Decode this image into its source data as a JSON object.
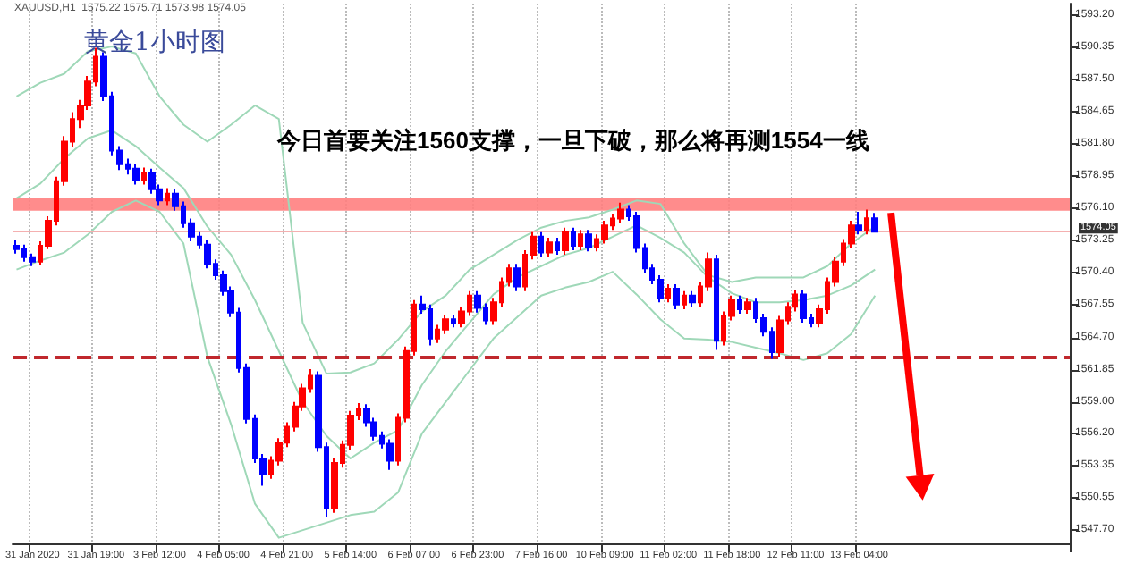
{
  "chart_data": {
    "type": "candlestick",
    "title": "黄金1小时图",
    "annotations": [
      "XAUUSD,H1  1575.22 1575.71 1573.98 1574.05",
      "今日首要关注1560支撑，一旦下破，那么将再测1554一线"
    ],
    "categories": [
      null,
      null,
      "31 Jan 2020",
      null,
      null,
      null,
      null,
      null,
      null,
      null,
      "31 Jan 19:00",
      null,
      null,
      null,
      null,
      null,
      null,
      null,
      "3 Feb 12:00",
      null,
      null,
      null,
      null,
      null,
      null,
      null,
      "4 Feb 05:00",
      null,
      null,
      null,
      null,
      null,
      null,
      null,
      "4 Feb 21:00",
      null,
      null,
      null,
      null,
      null,
      null,
      null,
      "5 Feb 14:00",
      null,
      null,
      null,
      null,
      null,
      null,
      null,
      "6 Feb 07:00",
      null,
      null,
      null,
      null,
      null,
      null,
      null,
      "6 Feb 23:00",
      null,
      null,
      null,
      null,
      null,
      null,
      null,
      "7 Feb 16:00",
      null,
      null,
      null,
      null,
      null,
      null,
      null,
      "10 Feb 09:00",
      null,
      null,
      null,
      null,
      null,
      null,
      null,
      "11 Feb 02:00",
      null,
      null,
      null,
      null,
      null,
      null,
      null,
      "11 Feb 18:00",
      null,
      null,
      null,
      null,
      null,
      null,
      null,
      "12 Feb 11:00",
      null,
      null,
      null,
      null,
      null,
      null,
      null,
      "13 Feb 04:00",
      null,
      null,
      null,
      null,
      null,
      null,
      null,
      null,
      null,
      null,
      null,
      null,
      null,
      null,
      null,
      null,
      null,
      null,
      null,
      null,
      null,
      null,
      null,
      null,
      null,
      null
    ],
    "colors": [
      "#0000ff",
      "#0000ff",
      "#0000ff",
      "#ff0000",
      "#ff0000",
      "#ff0000",
      "#ff0000",
      "#ff0000",
      "#ff0000",
      "#ff0000",
      "#ff0000",
      "#0000ff",
      "#0000ff",
      "#0000ff",
      "#0000ff",
      "#0000ff",
      "#ff0000",
      "#0000ff",
      "#0000ff",
      "#ff0000",
      "#0000ff",
      "#0000ff",
      "#0000ff",
      "#0000ff",
      "#0000ff",
      "#0000ff",
      "#0000ff",
      "#0000ff",
      "#0000ff",
      "#0000ff",
      "#0000ff",
      "#0000ff",
      "#ff0000",
      "#ff0000",
      "#ff0000",
      "#ff0000",
      "#ff0000",
      "#ff0000",
      "#0000ff",
      "#0000ff",
      "#ff0000",
      "#ff0000",
      "#ff0000",
      "#ff0000",
      "#0000ff",
      "#0000ff",
      "#0000ff",
      "#0000ff",
      "#ff0000",
      "#ff0000",
      "#ff0000",
      "#0000ff",
      "#0000ff",
      "#ff0000",
      "#ff0000",
      "#0000ff",
      "#ff0000",
      "#ff0000",
      "#0000ff",
      "#0000ff",
      "#ff0000",
      "#ff0000",
      "#ff0000",
      "#0000ff",
      "#ff0000",
      "#ff0000",
      "#0000ff",
      "#ff0000",
      "#0000ff",
      "#ff0000",
      "#0000ff",
      "#ff0000",
      "#0000ff",
      "#ff0000",
      "#ff0000",
      "#ff0000",
      "#ff0000",
      "#0000ff",
      "#0000ff",
      "#0000ff",
      "#0000ff",
      "#0000ff",
      "#ff0000",
      "#0000ff",
      "#ff0000",
      "#0000ff",
      "#ff0000",
      "#ff0000",
      "#0000ff",
      "#ff0000",
      "#ff0000",
      "#0000ff",
      "#ff0000",
      "#0000ff",
      "#0000ff",
      "#0000ff",
      "#ff0000",
      "#ff0000",
      "#ff0000",
      "#0000ff",
      "#0000ff",
      "#ff0000",
      "#ff0000",
      "#ff0000",
      "#ff0000",
      "#ff0000",
      "#0000ff",
      "#ff0000",
      "#0000ff",
      null,
      null,
      null,
      null,
      null,
      null,
      null,
      null,
      null,
      null,
      null,
      null,
      null,
      null,
      null,
      null,
      null,
      null,
      null,
      null,
      null,
      null,
      null,
      null
    ],
    "ohlc": [
      [
        1572.8,
        1573.3,
        1572.1,
        1572.5
      ],
      [
        1572.5,
        1572.9,
        1571.4,
        1571.8
      ],
      [
        1571.8,
        1572.1,
        1571.0,
        1571.4
      ],
      [
        1571.4,
        1573.2,
        1571.1,
        1572.8
      ],
      [
        1572.8,
        1575.4,
        1572.5,
        1575.0
      ],
      [
        1575.0,
        1578.9,
        1574.6,
        1578.5
      ],
      [
        1578.5,
        1582.5,
        1578.1,
        1582.0
      ],
      [
        1582.0,
        1584.6,
        1581.5,
        1584.0
      ],
      [
        1584.0,
        1585.7,
        1583.2,
        1585.2
      ],
      [
        1585.2,
        1587.8,
        1584.8,
        1587.3
      ],
      [
        1587.3,
        1590.3,
        1586.9,
        1589.5
      ],
      [
        1589.5,
        1589.9,
        1585.6,
        1586.0
      ],
      [
        1586.0,
        1586.4,
        1580.8,
        1581.2
      ],
      [
        1581.2,
        1581.6,
        1579.5,
        1580.0
      ],
      [
        1580.0,
        1580.5,
        1579.1,
        1579.6
      ],
      [
        1579.6,
        1580.0,
        1578.2,
        1578.6
      ],
      [
        1578.6,
        1579.7,
        1578.2,
        1579.2
      ],
      [
        1579.2,
        1579.6,
        1577.4,
        1577.8
      ],
      [
        1577.8,
        1578.2,
        1576.4,
        1576.8
      ],
      [
        1576.8,
        1577.9,
        1576.4,
        1577.4
      ],
      [
        1577.4,
        1577.8,
        1575.9,
        1576.3
      ],
      [
        1576.3,
        1576.7,
        1574.4,
        1574.8
      ],
      [
        1574.8,
        1575.2,
        1573.2,
        1573.6
      ],
      [
        1573.6,
        1574.0,
        1572.5,
        1572.9
      ],
      [
        1572.9,
        1573.3,
        1570.8,
        1571.2
      ],
      [
        1571.2,
        1571.6,
        1569.8,
        1570.2
      ],
      [
        1570.2,
        1570.6,
        1568.4,
        1568.8
      ],
      [
        1568.8,
        1569.2,
        1566.5,
        1566.9
      ],
      [
        1566.9,
        1567.3,
        1561.6,
        1562.0
      ],
      [
        1562.0,
        1562.4,
        1557.1,
        1557.5
      ],
      [
        1557.5,
        1557.9,
        1553.6,
        1554.0
      ],
      [
        1554.0,
        1554.4,
        1551.6,
        1552.6
      ],
      [
        1552.6,
        1554.2,
        1552.2,
        1553.8
      ],
      [
        1553.8,
        1555.8,
        1553.4,
        1555.4
      ],
      [
        1555.4,
        1557.2,
        1555.0,
        1556.8
      ],
      [
        1556.8,
        1559.0,
        1556.4,
        1558.6
      ],
      [
        1558.6,
        1560.6,
        1558.2,
        1560.2
      ],
      [
        1560.2,
        1561.9,
        1559.8,
        1561.3
      ],
      [
        1561.3,
        1561.7,
        1554.6,
        1555.0
      ],
      [
        1555.0,
        1555.4,
        1548.8,
        1549.6
      ],
      [
        1549.6,
        1554.0,
        1549.2,
        1553.6
      ],
      [
        1553.6,
        1555.6,
        1553.2,
        1555.2
      ],
      [
        1555.2,
        1558.2,
        1554.8,
        1557.8
      ],
      [
        1557.8,
        1558.9,
        1557.4,
        1558.4
      ],
      [
        1558.4,
        1558.8,
        1556.8,
        1557.2
      ],
      [
        1557.2,
        1557.6,
        1555.6,
        1556.0
      ],
      [
        1556.0,
        1556.4,
        1554.9,
        1555.3
      ],
      [
        1555.3,
        1555.7,
        1553.0,
        1553.8
      ],
      [
        1553.8,
        1558.0,
        1553.4,
        1557.6
      ],
      [
        1557.6,
        1563.9,
        1557.2,
        1563.5
      ],
      [
        1563.5,
        1568.0,
        1563.1,
        1567.6
      ],
      [
        1567.6,
        1568.4,
        1566.8,
        1567.2
      ],
      [
        1567.2,
        1567.6,
        1564.0,
        1564.6
      ],
      [
        1564.6,
        1565.8,
        1564.2,
        1565.4
      ],
      [
        1565.4,
        1566.7,
        1565.0,
        1566.3
      ],
      [
        1566.3,
        1566.7,
        1565.6,
        1566.0
      ],
      [
        1566.0,
        1567.4,
        1565.6,
        1567.0
      ],
      [
        1567.0,
        1568.8,
        1566.6,
        1568.4
      ],
      [
        1568.4,
        1568.8,
        1566.9,
        1567.3
      ],
      [
        1567.3,
        1567.7,
        1565.8,
        1566.2
      ],
      [
        1566.2,
        1568.2,
        1565.8,
        1567.8
      ],
      [
        1567.8,
        1570.0,
        1567.4,
        1569.6
      ],
      [
        1569.6,
        1571.2,
        1569.2,
        1570.8
      ],
      [
        1570.8,
        1571.2,
        1568.8,
        1569.2
      ],
      [
        1569.2,
        1572.4,
        1568.8,
        1572.0
      ],
      [
        1572.0,
        1574.0,
        1571.6,
        1573.6
      ],
      [
        1573.6,
        1574.0,
        1571.8,
        1572.2
      ],
      [
        1572.2,
        1573.5,
        1571.8,
        1573.1
      ],
      [
        1573.1,
        1573.5,
        1572.0,
        1572.4
      ],
      [
        1572.4,
        1574.4,
        1572.0,
        1574.0
      ],
      [
        1574.0,
        1574.4,
        1572.4,
        1572.8
      ],
      [
        1572.8,
        1574.2,
        1572.4,
        1573.8
      ],
      [
        1573.8,
        1574.2,
        1572.3,
        1572.7
      ],
      [
        1572.7,
        1573.8,
        1572.3,
        1573.4
      ],
      [
        1573.4,
        1575.0,
        1573.0,
        1574.6
      ],
      [
        1574.6,
        1575.6,
        1574.2,
        1575.2
      ],
      [
        1575.2,
        1576.6,
        1574.8,
        1576.0
      ],
      [
        1576.0,
        1576.4,
        1575.0,
        1575.4
      ],
      [
        1575.4,
        1575.8,
        1572.2,
        1572.6
      ],
      [
        1572.6,
        1573.0,
        1570.4,
        1570.8
      ],
      [
        1570.8,
        1571.2,
        1569.4,
        1569.8
      ],
      [
        1569.8,
        1570.2,
        1567.8,
        1568.2
      ],
      [
        1568.2,
        1569.4,
        1567.8,
        1569.0
      ],
      [
        1569.0,
        1569.4,
        1567.2,
        1567.6
      ],
      [
        1567.6,
        1568.8,
        1567.2,
        1568.4
      ],
      [
        1568.4,
        1568.8,
        1567.4,
        1567.8
      ],
      [
        1567.8,
        1569.6,
        1567.4,
        1569.2
      ],
      [
        1569.2,
        1572.2,
        1568.8,
        1571.6
      ],
      [
        1571.6,
        1572.0,
        1563.6,
        1564.4
      ],
      [
        1564.4,
        1567.0,
        1564.0,
        1566.6
      ],
      [
        1566.6,
        1568.4,
        1566.2,
        1568.0
      ],
      [
        1568.0,
        1568.4,
        1566.8,
        1567.2
      ],
      [
        1567.2,
        1568.2,
        1566.8,
        1567.8
      ],
      [
        1567.8,
        1568.2,
        1566.0,
        1566.4
      ],
      [
        1566.4,
        1566.8,
        1564.8,
        1565.2
      ],
      [
        1565.2,
        1565.6,
        1562.8,
        1563.4
      ],
      [
        1563.4,
        1566.6,
        1563.0,
        1566.2
      ],
      [
        1566.2,
        1567.8,
        1565.8,
        1567.4
      ],
      [
        1567.4,
        1568.9,
        1567.0,
        1568.5
      ],
      [
        1568.5,
        1568.9,
        1566.0,
        1566.4
      ],
      [
        1566.4,
        1566.8,
        1565.6,
        1566.0
      ],
      [
        1566.0,
        1567.6,
        1565.6,
        1567.2
      ],
      [
        1567.2,
        1570.0,
        1566.8,
        1569.6
      ],
      [
        1569.6,
        1571.8,
        1569.2,
        1571.4
      ],
      [
        1571.4,
        1573.4,
        1571.0,
        1573.0
      ],
      [
        1573.0,
        1575.0,
        1572.6,
        1574.6
      ],
      [
        1574.6,
        1575.8,
        1573.8,
        1574.2
      ],
      [
        1574.2,
        1576.0,
        1573.8,
        1575.22
      ],
      [
        1575.22,
        1575.71,
        1573.98,
        1574.05
      ],
      null,
      null,
      null,
      null,
      null,
      null,
      null,
      null,
      null,
      null,
      null,
      null,
      null,
      null,
      null,
      null,
      null,
      null,
      null,
      null,
      null,
      null,
      null,
      null
    ],
    "series": [
      {
        "type": "line",
        "color": "#9fd8b8",
        "values": [
          1586,
          null,
          null,
          1587.2,
          null,
          null,
          1588,
          null,
          null,
          1590,
          null,
          null,
          1590.4,
          null,
          null,
          1589.8,
          null,
          null,
          1586,
          null,
          null,
          1583.5,
          null,
          null,
          1582,
          null,
          null,
          1583.5,
          null,
          null,
          1585.2,
          null,
          null,
          1584,
          null,
          null,
          1566,
          null,
          null,
          1561.5,
          null,
          null,
          1561.6,
          null,
          null,
          1562.4,
          null,
          null,
          1564.5,
          null,
          null,
          1567,
          null,
          null,
          1568.4,
          null,
          null,
          1570.7,
          null,
          null,
          1572,
          null,
          null,
          1573.3,
          null,
          null,
          1574.4,
          null,
          null,
          1575,
          null,
          null,
          1575.3,
          null,
          null,
          1576,
          null,
          null,
          1576.8,
          null,
          null,
          1576.5,
          null,
          null,
          1573,
          null,
          null,
          1570.2,
          null,
          null,
          1569.6,
          null,
          null,
          1570,
          null,
          null,
          1570,
          null,
          null,
          1570,
          null,
          null,
          1571,
          null,
          null,
          1573,
          null,
          null,
          1574.5,
          null,
          null,
          null,
          null,
          null,
          null,
          null,
          null,
          null,
          null,
          null,
          null,
          null,
          null,
          null,
          null,
          null,
          null,
          null,
          null,
          null,
          null,
          null,
          null
        ]
      },
      {
        "type": "line",
        "color": "#9fd8b8",
        "values": [
          1577,
          null,
          null,
          1578.3,
          null,
          null,
          1580.5,
          null,
          null,
          1582.3,
          null,
          null,
          1583,
          null,
          null,
          1581.6,
          null,
          null,
          1579.7,
          null,
          null,
          1577.9,
          null,
          null,
          1574.5,
          null,
          null,
          1572,
          null,
          null,
          1568,
          null,
          null,
          1563.5,
          null,
          null,
          1559,
          null,
          null,
          1556,
          null,
          null,
          1554,
          null,
          null,
          1555.4,
          null,
          null,
          1556.5,
          null,
          null,
          1560.5,
          null,
          null,
          1563.5,
          null,
          null,
          1566,
          null,
          null,
          1568.5,
          null,
          null,
          1570,
          null,
          null,
          1571,
          null,
          null,
          1572,
          null,
          null,
          1572.6,
          null,
          null,
          1573.6,
          null,
          null,
          1574.6,
          null,
          null,
          1573.5,
          null,
          null,
          1572.2,
          null,
          null,
          1570,
          null,
          null,
          1568.6,
          null,
          null,
          1567.8,
          null,
          null,
          1567.8,
          null,
          null,
          1568,
          null,
          null,
          1568.4,
          null,
          null,
          1569.3,
          null,
          null,
          1570.7,
          null,
          null,
          null,
          null,
          null,
          null,
          null,
          null,
          null,
          null,
          null,
          null,
          null,
          null,
          null,
          null,
          null,
          null,
          null,
          null,
          null,
          null,
          null,
          null
        ]
      },
      {
        "type": "line",
        "color": "#9fd8b8",
        "values": [
          1570.7,
          null,
          null,
          1571.5,
          null,
          null,
          1572.2,
          null,
          null,
          1573.8,
          null,
          null,
          1575.8,
          null,
          null,
          1576.8,
          null,
          null,
          1575.8,
          null,
          null,
          1573,
          null,
          null,
          1563,
          null,
          null,
          1557,
          null,
          null,
          1550,
          null,
          null,
          1547,
          null,
          null,
          null,
          null,
          null,
          null,
          null,
          null,
          1549,
          null,
          null,
          1549.3,
          null,
          null,
          1551,
          null,
          null,
          1556.2,
          null,
          null,
          1559,
          null,
          null,
          1561.8,
          null,
          null,
          1564.6,
          null,
          null,
          1566.5,
          null,
          null,
          1568.4,
          null,
          null,
          1569.1,
          null,
          null,
          1569.6,
          null,
          null,
          1570.5,
          null,
          null,
          1568.5,
          null,
          null,
          1566.3,
          null,
          null,
          1564.6,
          null,
          null,
          1564.5,
          null,
          null,
          1564.3,
          null,
          null,
          1563.8,
          null,
          null,
          1563.3,
          null,
          null,
          1562.7,
          null,
          null,
          1563.3,
          null,
          null,
          1565,
          null,
          null,
          1568.4,
          null,
          null,
          null,
          null,
          null,
          null,
          null,
          null,
          null,
          null,
          null,
          null,
          null,
          null,
          null,
          null,
          null,
          null,
          null,
          null,
          null,
          null,
          null,
          null
        ]
      }
    ],
    "ylim": [
      1546.5,
      1594.2
    ],
    "yticks": [
      {
        "value": 1547.7,
        "label": "1547.70"
      },
      {
        "value": 1550.55,
        "label": "1550.55"
      },
      {
        "value": 1553.35,
        "label": "1553.35"
      },
      {
        "value": 1556.2,
        "label": "1556.20"
      },
      {
        "value": 1559,
        "label": "1559.00"
      },
      {
        "value": 1561.85,
        "label": "1561.85"
      },
      {
        "value": 1564.7,
        "label": "1564.70"
      },
      {
        "value": 1567.55,
        "label": "1567.55"
      },
      {
        "value": 1570.4,
        "label": "1570.40"
      },
      {
        "value": 1573.25,
        "label": "1573.25"
      },
      {
        "value": 1576.1,
        "label": "1576.10"
      },
      {
        "value": 1578.95,
        "label": "1578.95"
      },
      {
        "value": 1581.8,
        "label": "1581.80"
      },
      {
        "value": 1584.65,
        "label": "1584.65"
      },
      {
        "value": 1587.5,
        "label": "1587.50"
      },
      {
        "value": 1590.35,
        "label": "1590.35"
      },
      {
        "value": 1593.2,
        "label": "1593.20"
      }
    ],
    "ref_lines": [
      {
        "axis": "y",
        "value": 1574.05,
        "label": "1574.05",
        "color": "#f4b0b0",
        "line_style": "solid"
      },
      {
        "axis": "y",
        "value": 1563.0,
        "color": "#c0282d",
        "line_style": "dashed"
      }
    ],
    "bands": [
      {
        "axis": "y",
        "from": 1575.9,
        "to": 1577.0,
        "color": "#ff7f7f"
      }
    ],
    "grid": "x"
  }
}
